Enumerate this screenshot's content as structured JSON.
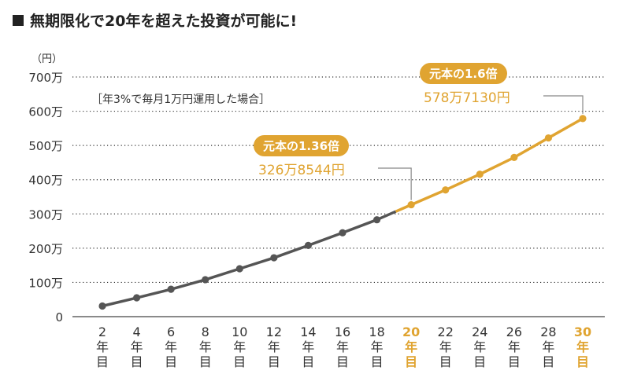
{
  "page": {
    "title": "無期限化で20年を超えた投資が可能に!",
    "unit": "（円）",
    "condition": "［年3%で毎月1万円運用した場合］"
  },
  "callouts": [
    {
      "badge": "元本の1.36倍",
      "amount": "326万8544円"
    },
    {
      "badge": "元本の1.6倍",
      "amount": "578万7130円"
    }
  ],
  "colors": {
    "accent": "#e0a431",
    "base_line": "#555555",
    "grid": "#333333"
  },
  "chart_data": {
    "type": "line",
    "title": "無期限化で20年を超えた投資が可能に!",
    "ylabel": "（円）",
    "ylim": [
      0,
      7000000
    ],
    "yticks": [
      {
        "value": 0,
        "label": "0"
      },
      {
        "value": 1000000,
        "label": "100万"
      },
      {
        "value": 2000000,
        "label": "200万"
      },
      {
        "value": 3000000,
        "label": "300万"
      },
      {
        "value": 4000000,
        "label": "400万"
      },
      {
        "value": 5000000,
        "label": "500万"
      },
      {
        "value": 6000000,
        "label": "600万"
      },
      {
        "value": 7000000,
        "label": "700万"
      }
    ],
    "x": [
      2,
      4,
      6,
      8,
      10,
      12,
      14,
      16,
      18,
      20,
      22,
      24,
      26,
      28,
      30
    ],
    "xtick_labels": [
      "2年目",
      "4年目",
      "6年目",
      "8年目",
      "10年目",
      "12年目",
      "14年目",
      "16年目",
      "18年目",
      "20年目",
      "22年目",
      "24年目",
      "26年目",
      "28年目",
      "30年目"
    ],
    "highlight_x": [
      20,
      30
    ],
    "values": [
      310000,
      550000,
      800000,
      1080000,
      1400000,
      1720000,
      2080000,
      2450000,
      2830000,
      3268544,
      3700000,
      4160000,
      4650000,
      5220000,
      5787130
    ],
    "grid": true
  }
}
